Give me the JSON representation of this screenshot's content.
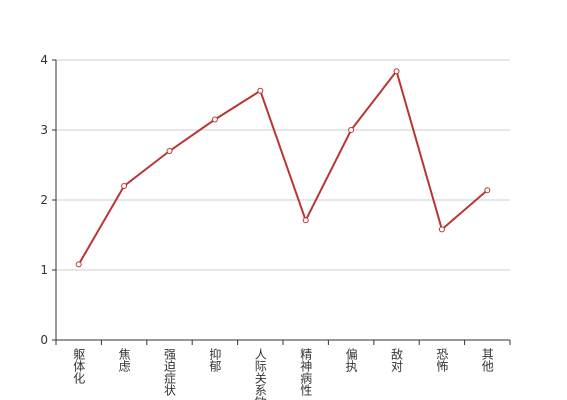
{
  "chart_data": {
    "type": "line",
    "categories": [
      "躯体化",
      "焦虑",
      "强迫症状",
      "抑郁",
      "人际关系敏感",
      "精神病性",
      "偏执",
      "敌对",
      "恐怖",
      "其他"
    ],
    "values": [
      1.08,
      2.2,
      2.7,
      3.15,
      3.56,
      1.71,
      3.0,
      3.84,
      1.58,
      2.14
    ],
    "color": "#b83633",
    "ylim": [
      0,
      4
    ],
    "yticks": [
      0,
      1,
      2,
      3,
      4
    ],
    "grid": true
  }
}
